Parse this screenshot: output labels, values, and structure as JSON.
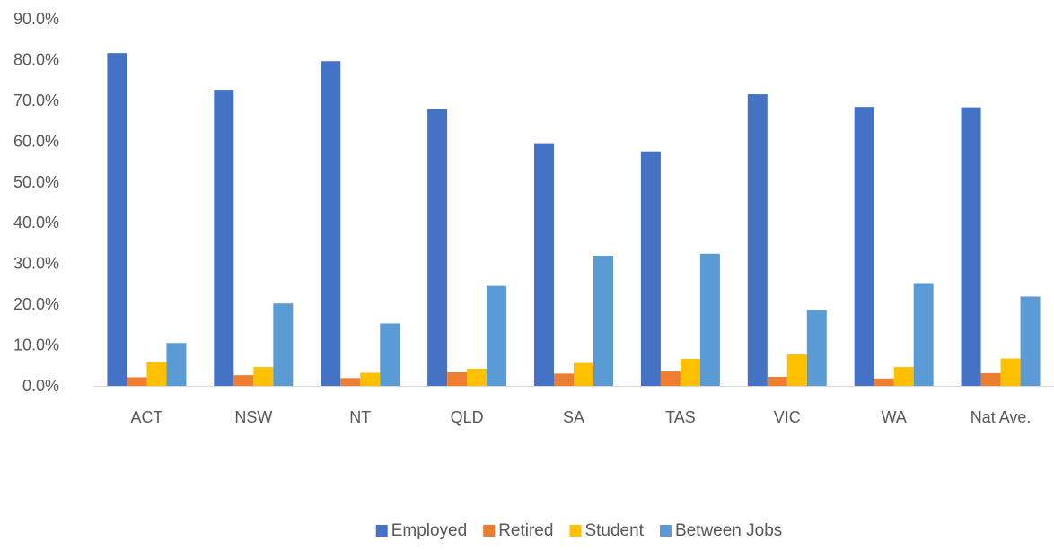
{
  "chart_data": {
    "type": "bar",
    "title": "",
    "xlabel": "",
    "ylabel": "",
    "ylim": [
      0,
      90
    ],
    "y_ticks": [
      "0.0%",
      "10.0%",
      "20.0%",
      "30.0%",
      "40.0%",
      "50.0%",
      "60.0%",
      "70.0%",
      "80.0%",
      "90.0%"
    ],
    "y_tick_values": [
      0,
      10,
      20,
      30,
      40,
      50,
      60,
      70,
      80,
      90
    ],
    "grid": false,
    "legend_position": "bottom",
    "categories": [
      "ACT",
      "NSW",
      "NT",
      "QLD",
      "SA",
      "TAS",
      "VIC",
      "WA",
      "Nat Ave."
    ],
    "series": [
      {
        "name": "Employed",
        "color": "#4472C4",
        "values": [
          81.6,
          72.6,
          79.6,
          67.9,
          59.5,
          57.5,
          71.5,
          68.4,
          68.3
        ]
      },
      {
        "name": "Retired",
        "color": "#ED7D31",
        "values": [
          2.1,
          2.6,
          1.9,
          3.3,
          3.0,
          3.5,
          2.2,
          1.8,
          3.1
        ]
      },
      {
        "name": "Student",
        "color": "#FFC000",
        "values": [
          5.8,
          4.6,
          3.2,
          4.2,
          5.6,
          6.6,
          7.7,
          4.6,
          6.7
        ]
      },
      {
        "name": "Between Jobs",
        "color": "#5B9BD5",
        "values": [
          10.5,
          20.2,
          15.3,
          24.5,
          31.9,
          32.4,
          18.6,
          25.2,
          21.9
        ]
      }
    ]
  }
}
